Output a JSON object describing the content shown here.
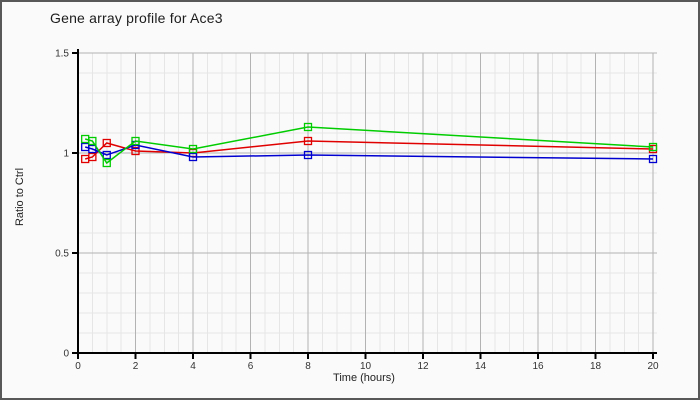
{
  "frame": {
    "background": "#fafafa",
    "border_color": "#585858"
  },
  "chart_data": {
    "type": "line",
    "title": "Gene array profile for Ace3",
    "xlabel": "Time (hours)",
    "ylabel": "Ratio to Ctrl",
    "x": [
      0.25,
      0.5,
      1,
      2,
      4,
      8,
      20
    ],
    "series": [
      {
        "name": "red-series",
        "color": "#e00000",
        "values": [
          0.97,
          0.98,
          1.05,
          1.01,
          1.0,
          1.06,
          1.02
        ]
      },
      {
        "name": "blue-series",
        "color": "#0000d0",
        "values": [
          1.03,
          1.02,
          0.99,
          1.04,
          0.98,
          0.99,
          0.97
        ]
      },
      {
        "name": "green-series",
        "color": "#00cc00",
        "values": [
          1.07,
          1.06,
          0.95,
          1.06,
          1.02,
          1.13,
          1.03
        ]
      }
    ],
    "xlim": [
      0,
      20.15
    ],
    "ylim": [
      0,
      1.5
    ],
    "x_major_ticks": [
      0,
      2,
      4,
      6,
      8,
      10,
      12,
      14,
      16,
      18,
      20
    ],
    "y_major_ticks": [
      0,
      0.5,
      1,
      1.5
    ],
    "x_minor_step": 0.5,
    "y_minor_step": 0.1,
    "grid": {
      "minor_color": "#e6e6e6",
      "major_color": "#b3b3b3",
      "on": true
    },
    "axis_color": "#000000",
    "marker": "open-square",
    "legend": "none"
  }
}
